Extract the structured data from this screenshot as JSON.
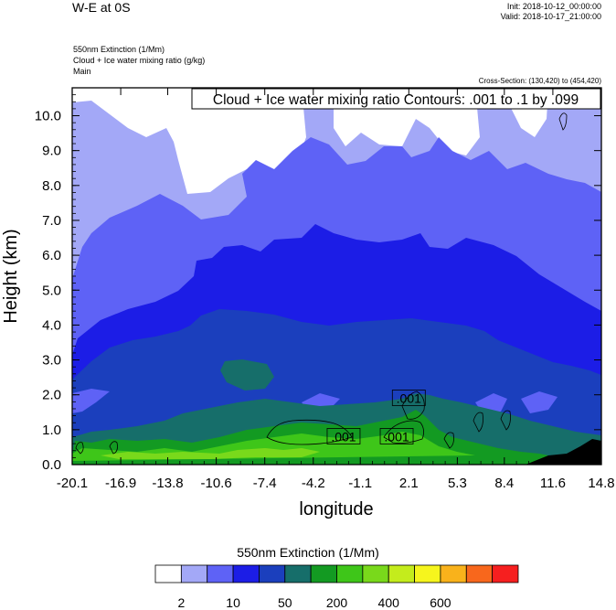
{
  "header": {
    "title": "W-E at 0S",
    "init": "Init: 2018-10-12_00:00:00",
    "valid": "Valid: 2018-10-17_21:00:00",
    "field1": "550nm Extinction   (1/Mm)",
    "field2": "Cloud + Ice water mixing ratio   (g/kg)",
    "field3": "Main",
    "cross_section": "Cross-Section: (130,420) to (454,420)"
  },
  "chart_data": {
    "type": "heatmap",
    "title": "",
    "contour_label": "Cloud + Ice water mixing ratio Contours: .001 to .1 by .099",
    "xlabel": "longitude",
    "ylabel": "Height (km)",
    "xlim": [
      -20.1,
      14.8
    ],
    "ylim": [
      0,
      10.8
    ],
    "x_ticks": [
      "-20.1",
      "-16.9",
      "-13.8",
      "-10.6",
      "-7.4",
      "-4.2",
      "-1.1",
      "2.1",
      "5.3",
      "8.4",
      "11.6",
      "14.8"
    ],
    "y_ticks": [
      "0.0",
      "1.0",
      "2.0",
      "3.0",
      "4.0",
      "5.0",
      "6.0",
      "7.0",
      "8.0",
      "9.0",
      "10.0"
    ],
    "contour_labels": [
      {
        "text": ".001",
        "x": 2.1,
        "y": 1.9
      },
      {
        "text": ".001",
        "x": -2.2,
        "y": 0.8
      },
      {
        "text": ".001",
        "x": 1.3,
        "y": 0.8
      }
    ],
    "colorbar": {
      "title": "550nm Extinction  (1/Mm)",
      "labels": [
        "2",
        "10",
        "50",
        "200",
        "400",
        "600"
      ],
      "colors": [
        "#ffffff",
        "#a3a8f7",
        "#5e62f6",
        "#1c1de6",
        "#1b3fbd",
        "#166e6a",
        "#139a22",
        "#3ec619",
        "#79d91b",
        "#c4ec1c",
        "#f6f51d",
        "#f9b21b",
        "#f8671c",
        "#f61f1f"
      ]
    }
  }
}
